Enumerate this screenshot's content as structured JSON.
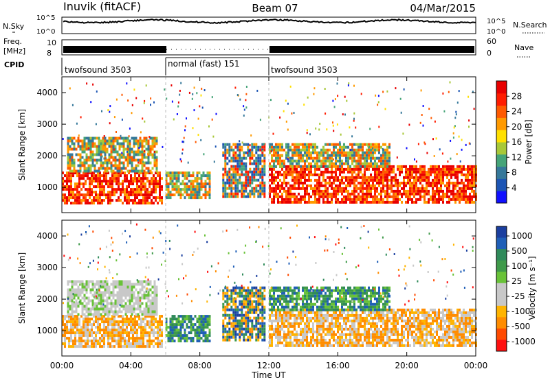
{
  "header": {
    "station": "Inuvik (fitACF)",
    "beam": "Beam 07",
    "date": "04/Mar/2015"
  },
  "noise_panel": {
    "left_label": "N.Sky",
    "right_label": "N.Search",
    "ticks": [
      "10^5",
      "10^0"
    ]
  },
  "freq_panel": {
    "left_label_line1": "Freq.",
    "left_label_line2": "[MHz]",
    "left_ticks": [
      "10",
      "8"
    ],
    "right_label": "Nave",
    "right_ticks": [
      "60",
      "0"
    ]
  },
  "cpid_panel": {
    "label": "CPID",
    "segments": [
      {
        "name": "twofsound 3503",
        "start": "00:00",
        "end": "06:00"
      },
      {
        "name": "normal (fast) 151",
        "start": "06:00",
        "end": "12:00"
      },
      {
        "name": "twofsound 3503",
        "start": "12:00",
        "end": "24:00"
      }
    ]
  },
  "colors": {
    "power_scale": [
      "#1010ff",
      "#1c55b4",
      "#35789a",
      "#45a478",
      "#a8c838",
      "#ffe000",
      "#ff9a00",
      "#ff5a00",
      "#ff1c00",
      "#e80000"
    ],
    "velocity_scale": [
      "#1b3f9f",
      "#1f5fb7",
      "#2f8a5a",
      "#3f9a4a",
      "#69c238",
      "#c8c8c8",
      "#c8c8c8",
      "#ffb400",
      "#ff8c00",
      "#ff4a00",
      "#ff1010"
    ]
  },
  "chart_data": [
    {
      "type": "heatmap",
      "name": "power",
      "ylabel": "Slant Range [km]",
      "ylim": [
        200,
        4500
      ],
      "yticks": [
        "1000",
        "2000",
        "3000",
        "4000"
      ],
      "xlim": [
        "00:00",
        "24:00"
      ],
      "colorbar": {
        "label": "Power [dB]",
        "ticks": [
          "4",
          "8",
          "12",
          "16",
          "20",
          "24",
          "28"
        ],
        "range": [
          0,
          32
        ]
      },
      "bands": [
        {
          "t0": 0.0,
          "t1": 5.8,
          "r0": 500,
          "r1": 1500,
          "level": "high"
        },
        {
          "t0": 0.3,
          "t1": 5.5,
          "r0": 1500,
          "r1": 2600,
          "level": "medium"
        },
        {
          "t0": 6.0,
          "t1": 8.6,
          "r0": 700,
          "r1": 1500,
          "level": "medium"
        },
        {
          "t0": 9.3,
          "t1": 11.8,
          "r0": 700,
          "r1": 2400,
          "level": "mixed"
        },
        {
          "t0": 12.0,
          "t1": 24.0,
          "r0": 500,
          "r1": 1700,
          "level": "high"
        },
        {
          "t0": 12.0,
          "t1": 19.0,
          "r0": 1700,
          "r1": 2400,
          "level": "medium"
        }
      ]
    },
    {
      "type": "heatmap",
      "name": "velocity",
      "ylabel": "Slant Range [km]",
      "ylim": [
        200,
        4500
      ],
      "yticks": [
        "1000",
        "2000",
        "3000",
        "4000"
      ],
      "xlabel": "Time UT",
      "xticks": [
        "00:00",
        "04:00",
        "08:00",
        "12:00",
        "16:00",
        "20:00",
        "00:00"
      ],
      "colorbar": {
        "label": "Velocity [m s⁻¹]",
        "ticks": [
          "1000",
          "500",
          "100",
          "25",
          "-25",
          "-100",
          "-500",
          "-1000"
        ],
        "range": [
          -1000,
          1000
        ]
      },
      "bands": [
        {
          "t0": 0.0,
          "t1": 5.8,
          "r0": 500,
          "r1": 1500,
          "level": "negative"
        },
        {
          "t0": 0.3,
          "t1": 5.5,
          "r0": 1500,
          "r1": 2600,
          "level": "near-zero"
        },
        {
          "t0": 6.0,
          "t1": 8.6,
          "r0": 700,
          "r1": 1500,
          "level": "positive"
        },
        {
          "t0": 9.3,
          "t1": 11.8,
          "r0": 700,
          "r1": 2400,
          "level": "mixed"
        },
        {
          "t0": 12.0,
          "t1": 24.0,
          "r0": 500,
          "r1": 1700,
          "level": "negative"
        },
        {
          "t0": 12.0,
          "t1": 19.0,
          "r0": 1700,
          "r1": 2400,
          "level": "positive"
        }
      ]
    }
  ]
}
